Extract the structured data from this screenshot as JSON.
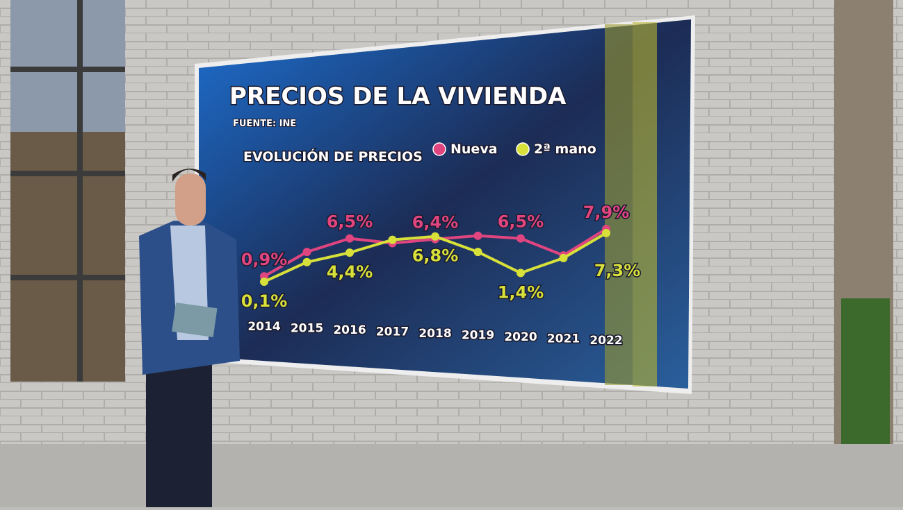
{
  "chart_data": {
    "type": "line",
    "title": "PRECIOS DE LA VIVIENDA",
    "subtitle": "FUENTE: INE",
    "legend_title": "EVOLUCIÓN DE PRECIOS",
    "categories": [
      "2014",
      "2015",
      "2016",
      "2017",
      "2018",
      "2019",
      "2020",
      "2021",
      "2022"
    ],
    "series": [
      {
        "name": "Nueva",
        "color": "#e0457f",
        "values": [
          0.9,
          4.5,
          6.5,
          5.8,
          6.4,
          6.9,
          6.5,
          4.0,
          7.9
        ],
        "value_labels": [
          "0,9%",
          null,
          "6,5%",
          null,
          "6,4%",
          null,
          "6,5%",
          null,
          "7,9%"
        ]
      },
      {
        "name": "2ª mano",
        "color": "#d8e03a",
        "values": [
          0.1,
          3.0,
          4.4,
          6.3,
          6.8,
          4.5,
          1.4,
          3.6,
          7.3
        ],
        "value_labels": [
          "0,1%",
          null,
          "4,4%",
          null,
          "6,8%",
          null,
          "1,4%",
          null,
          "7,3%"
        ]
      }
    ]
  }
}
